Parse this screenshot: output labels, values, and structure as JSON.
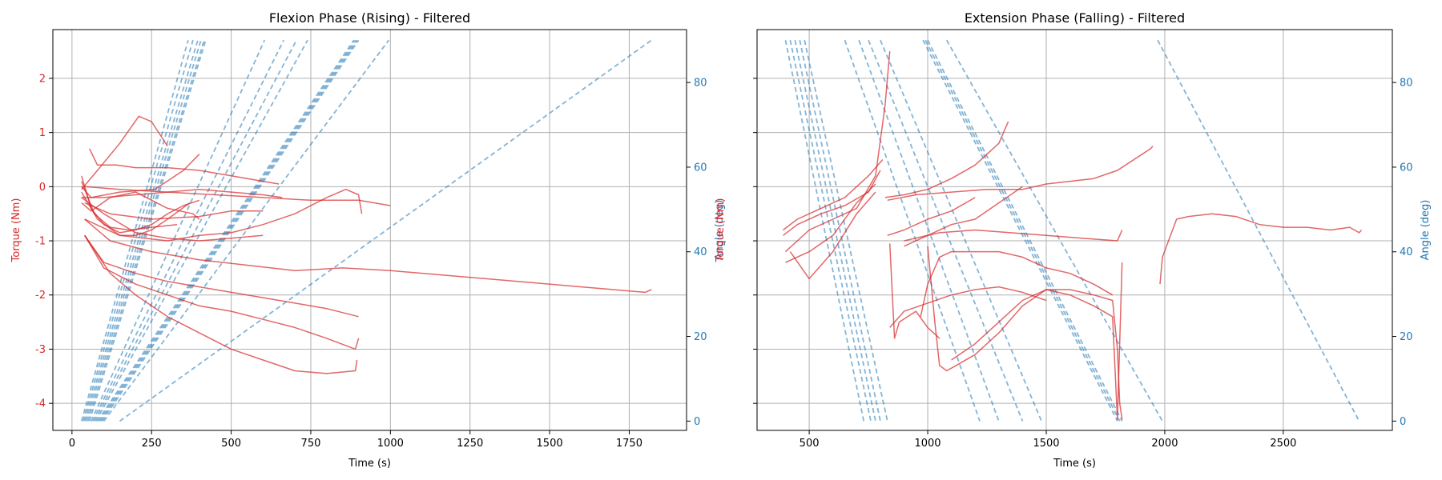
{
  "chart_data": [
    {
      "type": "line",
      "title": "Flexion Phase (Rising) - Filtered",
      "xlabel": "Time (s)",
      "ylabel": "Torque (Nm)",
      "y2label": "Angle (deg)",
      "xlim": [
        -60,
        1930
      ],
      "ylim": [
        -4.5,
        2.9
      ],
      "y2lim": [
        -2.2,
        92.5
      ],
      "xticks": [
        0,
        250,
        500,
        750,
        1000,
        1250,
        1500,
        1750
      ],
      "yticks": [
        -4,
        -3,
        -2,
        -1,
        0,
        1,
        2
      ],
      "y2ticks": [
        0,
        20,
        40,
        60,
        80
      ],
      "grid": true,
      "colors": {
        "torque": "#d62728",
        "angle": "#1f77b4"
      },
      "angle_series": [
        {
          "x": [
            30,
            365
          ],
          "y": [
            0,
            90
          ]
        },
        {
          "x": [
            35,
            380
          ],
          "y": [
            0,
            90
          ]
        },
        {
          "x": [
            40,
            395
          ],
          "y": [
            0,
            90
          ]
        },
        {
          "x": [
            45,
            405
          ],
          "y": [
            0,
            90
          ]
        },
        {
          "x": [
            50,
            415
          ],
          "y": [
            0,
            90
          ]
        },
        {
          "x": [
            55,
            420
          ],
          "y": [
            0,
            90
          ]
        },
        {
          "x": [
            60,
            605
          ],
          "y": [
            0,
            90
          ]
        },
        {
          "x": [
            65,
            665
          ],
          "y": [
            0,
            90
          ]
        },
        {
          "x": [
            70,
            705
          ],
          "y": [
            0,
            90
          ]
        },
        {
          "x": [
            75,
            740
          ],
          "y": [
            0,
            90
          ]
        },
        {
          "x": [
            80,
            885
          ],
          "y": [
            0,
            90
          ]
        },
        {
          "x": [
            85,
            890
          ],
          "y": [
            0,
            90
          ]
        },
        {
          "x": [
            90,
            895
          ],
          "y": [
            0,
            90
          ]
        },
        {
          "x": [
            95,
            900
          ],
          "y": [
            0,
            90
          ]
        },
        {
          "x": [
            100,
            995
          ],
          "y": [
            0,
            90
          ]
        },
        {
          "x": [
            150,
            1820
          ],
          "y": [
            0,
            90
          ]
        }
      ],
      "torque_series": [
        {
          "x": [
            30,
            60,
            100,
            150,
            200,
            250,
            300,
            350,
            400
          ],
          "y": [
            0.2,
            -0.4,
            -0.7,
            -0.85,
            -0.8,
            -0.7,
            -0.5,
            -0.35,
            -0.25
          ]
        },
        {
          "x": [
            30,
            80,
            150,
            200,
            250,
            300,
            370
          ],
          "y": [
            -0.1,
            -0.6,
            -0.9,
            -0.9,
            -0.8,
            -0.6,
            -0.3
          ]
        },
        {
          "x": [
            30,
            70,
            120,
            180,
            250,
            330
          ],
          "y": [
            0.1,
            -0.5,
            -0.75,
            -0.8,
            -0.75,
            -0.7
          ]
        },
        {
          "x": [
            30,
            60,
            120,
            200,
            300,
            380,
            400
          ],
          "y": [
            -0.3,
            -0.45,
            -0.2,
            -0.1,
            -0.4,
            -0.5,
            -0.6
          ]
        },
        {
          "x": [
            30,
            100,
            200,
            300,
            400,
            500,
            600
          ],
          "y": [
            -0.2,
            -0.5,
            -0.85,
            -0.95,
            -1.0,
            -0.95,
            -0.9
          ]
        },
        {
          "x": [
            30,
            60,
            150,
            260,
            350,
            400
          ],
          "y": [
            0,
            -0.2,
            -0.1,
            -0.05,
            0.3,
            0.6
          ]
        },
        {
          "x": [
            30,
            80,
            150,
            210,
            250,
            300
          ],
          "y": [
            -0.05,
            0.3,
            0.8,
            1.3,
            1.2,
            0.75
          ]
        },
        {
          "x": [
            55,
            80,
            140,
            200,
            300,
            400,
            500,
            600,
            650
          ],
          "y": [
            0.7,
            0.4,
            0.4,
            0.35,
            0.35,
            0.3,
            0.2,
            0.1,
            0.05
          ]
        },
        {
          "x": [
            30,
            100,
            200,
            300,
            400,
            500,
            600,
            660
          ],
          "y": [
            -0.2,
            -0.2,
            -0.15,
            -0.1,
            -0.05,
            -0.1,
            -0.15,
            -0.2
          ]
        },
        {
          "x": [
            40,
            150,
            300,
            450,
            600,
            750,
            900,
            1000
          ],
          "y": [
            0,
            -0.05,
            -0.1,
            -0.15,
            -0.2,
            -0.25,
            -0.25,
            -0.35
          ]
        },
        {
          "x": [
            40,
            150,
            300,
            400,
            500,
            600,
            700,
            800,
            860,
            900,
            910
          ],
          "y": [
            -0.6,
            -0.9,
            -1.0,
            -0.9,
            -0.85,
            -0.7,
            -0.5,
            -0.2,
            -0.05,
            -0.15,
            -0.5
          ]
        },
        {
          "x": [
            40,
            120,
            250,
            400,
            550,
            700,
            850,
            1000,
            1200,
            1400,
            1600,
            1800,
            1820
          ],
          "y": [
            -0.6,
            -1.0,
            -1.2,
            -1.35,
            -1.45,
            -1.55,
            -1.5,
            -1.55,
            -1.65,
            -1.75,
            -1.85,
            -1.95,
            -1.9
          ]
        },
        {
          "x": [
            40,
            100,
            200,
            300,
            400,
            500,
            600,
            700,
            800,
            900
          ],
          "y": [
            -0.9,
            -1.4,
            -1.6,
            -1.75,
            -1.85,
            -1.95,
            -2.05,
            -2.15,
            -2.25,
            -2.4
          ]
        },
        {
          "x": [
            40,
            100,
            200,
            300,
            400,
            500,
            600,
            700,
            800,
            890,
            900
          ],
          "y": [
            -0.9,
            -1.5,
            -1.8,
            -2.0,
            -2.2,
            -2.3,
            -2.45,
            -2.6,
            -2.8,
            -3.0,
            -2.8
          ]
        },
        {
          "x": [
            40,
            120,
            200,
            300,
            400,
            500,
            600,
            700,
            800,
            890,
            895
          ],
          "y": [
            -0.9,
            -1.6,
            -2.0,
            -2.4,
            -2.7,
            -3.0,
            -3.2,
            -3.4,
            -3.45,
            -3.4,
            -3.2
          ]
        },
        {
          "x": [
            40,
            120,
            250,
            400,
            500,
            600
          ],
          "y": [
            -0.3,
            -0.5,
            -0.6,
            -0.55,
            -0.45,
            -0.45
          ]
        }
      ]
    },
    {
      "type": "line",
      "title": "Extension Phase (Falling) - Filtered",
      "xlabel": "Time (s)",
      "ylabel": "Torque (Nm)",
      "y2label": "Angle (deg)",
      "xlim": [
        280,
        2960
      ],
      "ylim": [
        -4.5,
        2.9
      ],
      "y2lim": [
        -2.2,
        92.5
      ],
      "xticks": [
        500,
        1000,
        1500,
        2000,
        2500
      ],
      "yticks": [],
      "y2ticks": [
        0,
        20,
        40,
        60,
        80
      ],
      "grid": true,
      "colors": {
        "torque": "#d62728",
        "angle": "#1f77b4"
      },
      "angle_series": [
        {
          "x": [
            400,
            730
          ],
          "y": [
            90,
            0
          ]
        },
        {
          "x": [
            420,
            760
          ],
          "y": [
            90,
            0
          ]
        },
        {
          "x": [
            440,
            780
          ],
          "y": [
            90,
            0
          ]
        },
        {
          "x": [
            460,
            800
          ],
          "y": [
            90,
            0
          ]
        },
        {
          "x": [
            480,
            830
          ],
          "y": [
            90,
            0
          ]
        },
        {
          "x": [
            650,
            1220
          ],
          "y": [
            90,
            0
          ]
        },
        {
          "x": [
            710,
            1300
          ],
          "y": [
            90,
            0
          ]
        },
        {
          "x": [
            750,
            1400
          ],
          "y": [
            90,
            0
          ]
        },
        {
          "x": [
            800,
            1480
          ],
          "y": [
            90,
            0
          ]
        },
        {
          "x": [
            980,
            1800
          ],
          "y": [
            90,
            0
          ]
        },
        {
          "x": [
            990,
            1810
          ],
          "y": [
            90,
            0
          ]
        },
        {
          "x": [
            1000,
            1820
          ],
          "y": [
            90,
            0
          ]
        },
        {
          "x": [
            1080,
            1990
          ],
          "y": [
            90,
            0
          ]
        },
        {
          "x": [
            1970,
            2820
          ],
          "y": [
            90,
            0
          ]
        }
      ],
      "torque_series": [
        {
          "x": [
            390,
            450,
            550,
            650,
            750,
            810
          ],
          "y": [
            -0.8,
            -0.6,
            -0.4,
            -0.2,
            0.2,
            0.5
          ]
        },
        {
          "x": [
            390,
            450,
            550,
            650,
            750,
            800
          ],
          "y": [
            -0.9,
            -0.7,
            -0.5,
            -0.35,
            -0.1,
            0.3
          ]
        },
        {
          "x": [
            400,
            500,
            600,
            700,
            780,
            820,
            840
          ],
          "y": [
            -1.2,
            -0.8,
            -0.6,
            -0.4,
            0.2,
            1.5,
            2.5
          ]
        },
        {
          "x": [
            400,
            500,
            600,
            700,
            780
          ],
          "y": [
            -1.4,
            -1.2,
            -0.9,
            -0.3,
            0.05
          ]
        },
        {
          "x": [
            420,
            500,
            600,
            700,
            780
          ],
          "y": [
            -1.2,
            -1.7,
            -1.2,
            -0.5,
            -0.1
          ]
        },
        {
          "x": [
            820,
            900,
            1000,
            1100,
            1200,
            1300,
            1340
          ],
          "y": [
            -0.2,
            -0.15,
            -0.05,
            0.15,
            0.4,
            0.8,
            1.2
          ]
        },
        {
          "x": [
            830,
            950,
            1100,
            1250,
            1400,
            1500,
            1600,
            1700,
            1800,
            1940,
            1950
          ],
          "y": [
            -0.25,
            -0.15,
            -0.1,
            -0.05,
            -0.05,
            0.05,
            0.1,
            0.15,
            0.3,
            0.7,
            0.75
          ]
        },
        {
          "x": [
            900,
            1000,
            1100,
            1200,
            1300,
            1400
          ],
          "y": [
            -1.1,
            -0.9,
            -0.7,
            -0.6,
            -0.3,
            0
          ]
        },
        {
          "x": [
            900,
            1050,
            1200,
            1350,
            1500,
            1650,
            1800,
            1820
          ],
          "y": [
            -1.0,
            -0.85,
            -0.8,
            -0.85,
            -0.9,
            -0.95,
            -1.0,
            -0.8
          ]
        },
        {
          "x": [
            830,
            900,
            1000,
            1100,
            1200
          ],
          "y": [
            -0.9,
            -0.8,
            -0.6,
            -0.45,
            -0.2
          ]
        },
        {
          "x": [
            840,
            900,
            1000,
            1100,
            1200,
            1300,
            1400,
            1500
          ],
          "y": [
            -2.6,
            -2.3,
            -2.15,
            -2.0,
            -1.9,
            -1.85,
            -1.95,
            -2.1
          ]
        },
        {
          "x": [
            840,
            860,
            880,
            950,
            1000,
            1050
          ],
          "y": [
            -1.05,
            -2.8,
            -2.5,
            -2.3,
            -2.6,
            -2.8
          ]
        },
        {
          "x": [
            970,
            1000,
            1050,
            1100,
            1200,
            1300,
            1400,
            1500,
            1600,
            1700,
            1780
          ],
          "y": [
            -2.4,
            -1.8,
            -1.3,
            -1.2,
            -1.2,
            -1.2,
            -1.3,
            -1.5,
            -1.6,
            -1.8,
            -2.0
          ]
        },
        {
          "x": [
            1000,
            1030,
            1050,
            1080,
            1120,
            1200,
            1300,
            1400,
            1500,
            1600,
            1700,
            1780,
            1800,
            1820
          ],
          "y": [
            -1.1,
            -2.5,
            -3.3,
            -3.4,
            -3.3,
            -3.1,
            -2.7,
            -2.2,
            -1.9,
            -2.0,
            -2.2,
            -2.4,
            -4.3,
            -1.4
          ]
        },
        {
          "x": [
            1100,
            1200,
            1300,
            1400,
            1500,
            1600,
            1700,
            1780,
            1800,
            1810,
            1820
          ],
          "y": [
            -3.2,
            -2.9,
            -2.5,
            -2.1,
            -1.9,
            -1.9,
            -2.0,
            -2.1,
            -3.0,
            -4.0,
            -4.3
          ]
        },
        {
          "x": [
            1980,
            1990,
            2050,
            2100,
            2200,
            2300,
            2400,
            2500,
            2600,
            2700,
            2780,
            2820,
            2830
          ],
          "y": [
            -1.8,
            -1.3,
            -0.6,
            -0.55,
            -0.5,
            -0.55,
            -0.7,
            -0.75,
            -0.75,
            -0.8,
            -0.75,
            -0.85,
            -0.8
          ]
        }
      ]
    }
  ]
}
